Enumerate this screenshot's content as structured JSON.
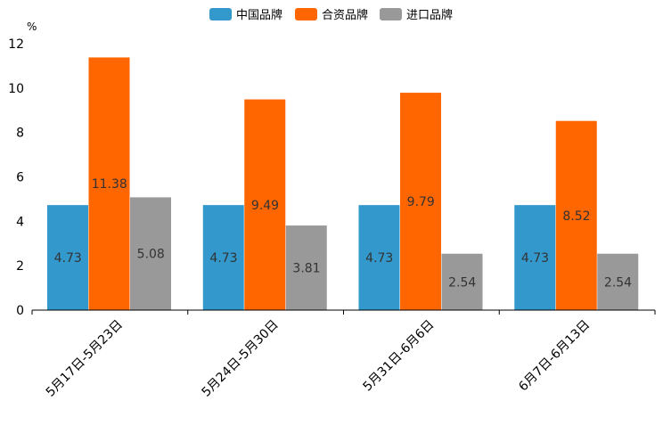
{
  "chart_data": {
    "type": "bar",
    "title": "",
    "xlabel": "",
    "ylabel": "%",
    "ylim": [
      0,
      12
    ],
    "yticks": [
      0,
      2,
      4,
      6,
      8,
      10,
      12
    ],
    "grid": false,
    "legend_position": "top-center",
    "categories": [
      "5月17日-5月23日",
      "5月24日-5月30日",
      "5月31日-6月6日",
      "6月7日-6月13日"
    ],
    "series": [
      {
        "name": "中国品牌",
        "color": "#3398CC",
        "values": [
          4.73,
          4.73,
          4.73,
          4.73
        ],
        "labels": [
          "4.73",
          "4.73",
          "4.73",
          "4.73"
        ]
      },
      {
        "name": "合资品牌",
        "color": "#FF6600",
        "values": [
          11.38,
          9.49,
          9.79,
          8.52
        ],
        "labels": [
          "11.38",
          "9.49",
          "9.79",
          "8.52"
        ]
      },
      {
        "name": "进口品牌",
        "color": "#999999",
        "values": [
          5.08,
          3.81,
          2.54,
          2.54
        ],
        "labels": [
          "5.08",
          "3.81",
          "2.54",
          "2.54"
        ]
      }
    ]
  }
}
